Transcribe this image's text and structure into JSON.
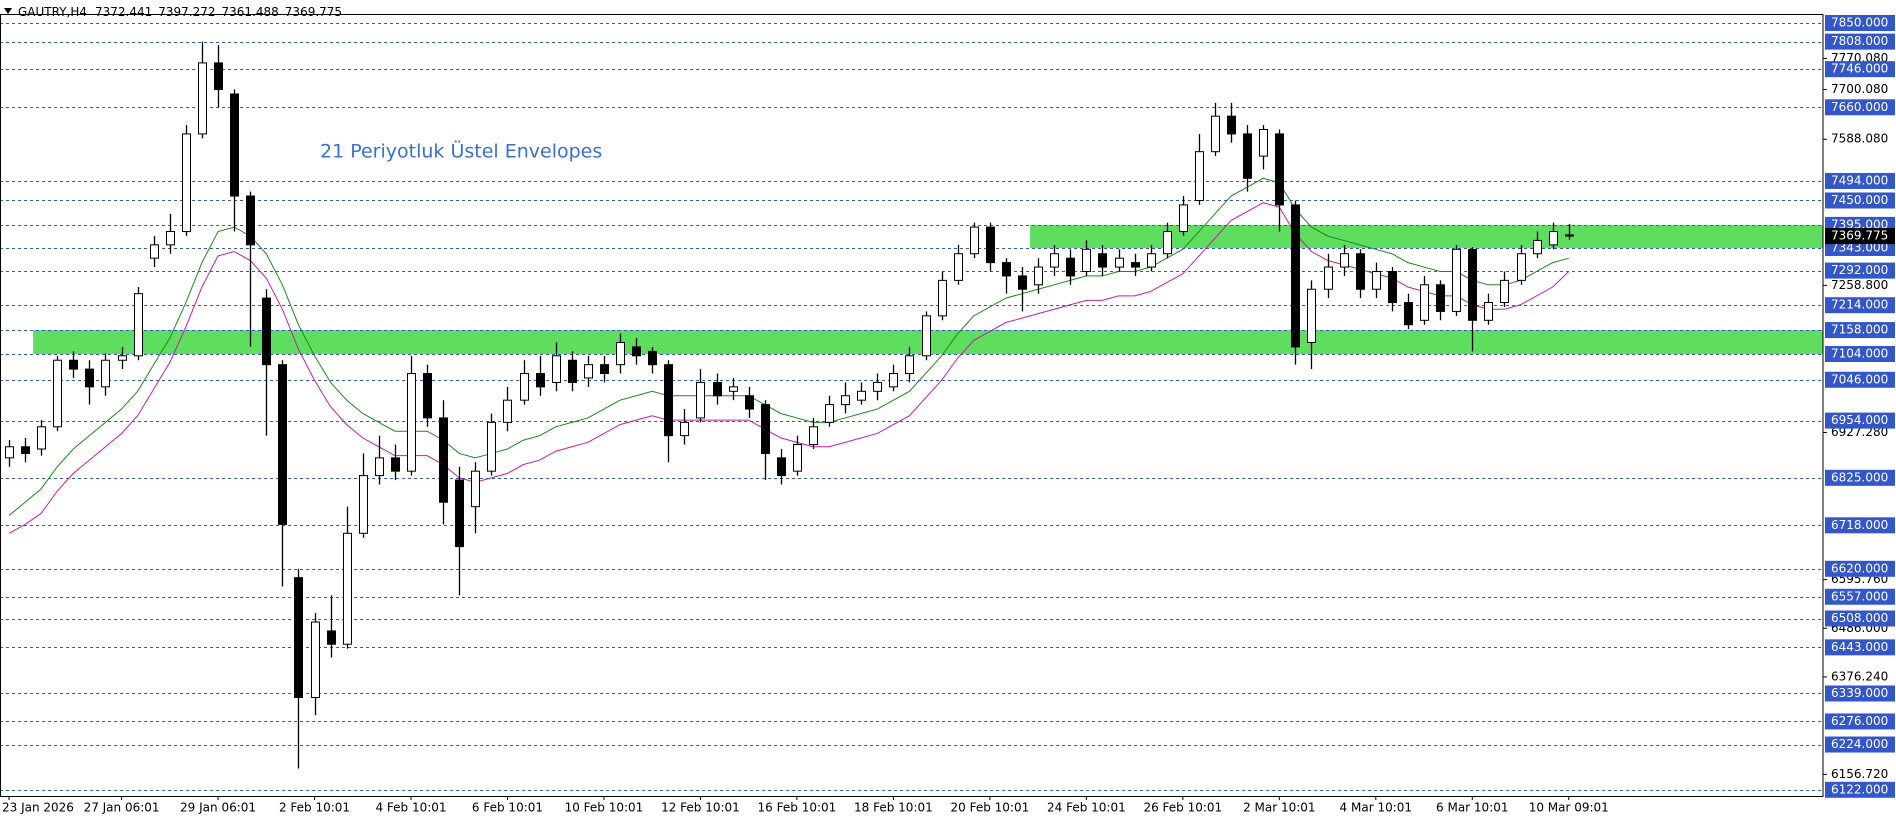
{
  "chart_data": {
    "type": "candlestick",
    "header": "GAUTRY,H4",
    "annotation": "21 Periyotluk Üstel Envelopes",
    "categories": [
      "23 Jan 2026",
      null,
      null,
      null,
      null,
      null,
      null,
      "27 Jan 06:01",
      null,
      null,
      null,
      null,
      null,
      "29 Jan 06:01",
      null,
      null,
      null,
      null,
      null,
      "2 Feb 10:01",
      null,
      null,
      null,
      null,
      null,
      "4 Feb 10:01",
      null,
      null,
      null,
      null,
      null,
      "6 Feb 10:01",
      null,
      null,
      null,
      null,
      null,
      "10 Feb 10:01",
      null,
      null,
      null,
      null,
      null,
      "12 Feb 10:01",
      null,
      null,
      null,
      null,
      null,
      "16 Feb 10:01",
      null,
      null,
      null,
      null,
      null,
      "18 Feb 10:01",
      null,
      null,
      null,
      null,
      null,
      "20 Feb 10:01",
      null,
      null,
      null,
      null,
      null,
      "24 Feb 10:01",
      null,
      null,
      null,
      null,
      null,
      "26 Feb 10:01",
      null,
      null,
      null,
      null,
      null,
      "2 Mar 10:01",
      null,
      null,
      null,
      null,
      null,
      "4 Mar 10:01",
      null,
      null,
      null,
      null,
      null,
      "6 Mar 10:01",
      null,
      null,
      null,
      null,
      null,
      "10 Mar 09:01"
    ],
    "open": [
      6870,
      6895,
      6890,
      6940,
      7090,
      7070,
      7030,
      7090,
      7100,
      7320,
      7350,
      7380,
      7600,
      7760,
      7690,
      7460,
      7230,
      7080,
      6600,
      6330,
      6480,
      6450,
      6700,
      6830,
      6870,
      6840,
      7060,
      6960,
      6820,
      6760,
      6840,
      6950,
      7000,
      7060,
      7040,
      7090,
      7050,
      7080,
      7080,
      7120,
      7110,
      7080,
      6920,
      6960,
      7040,
      7020,
      7010,
      6990,
      6870,
      6840,
      6900,
      6950,
      6990,
      7000,
      7020,
      7030,
      7060,
      7100,
      7190,
      7270,
      7330,
      7390,
      7310,
      7280,
      7260,
      7300,
      7320,
      7290,
      7330,
      7300,
      7310,
      7300,
      7330,
      7380,
      7450,
      7560,
      7640,
      7600,
      7550,
      7600,
      7440,
      7130,
      7250,
      7300,
      7330,
      7250,
      7290,
      7220,
      7180,
      7260,
      7200,
      7340,
      7180,
      7220,
      7270,
      7330,
      7350,
      7372.441
    ],
    "high": [
      6910,
      6915,
      6955,
      7100,
      7110,
      7090,
      7105,
      7120,
      7255,
      7370,
      7420,
      7620,
      7808,
      7800,
      7700,
      7470,
      7250,
      7090,
      6620,
      6520,
      6560,
      6760,
      6880,
      6920,
      6900,
      7100,
      7080,
      7000,
      6850,
      6860,
      6970,
      7030,
      7090,
      7100,
      7130,
      7110,
      7100,
      7100,
      7150,
      7140,
      7120,
      7090,
      6980,
      7070,
      7060,
      7050,
      7030,
      7000,
      6890,
      6920,
      6960,
      7010,
      7040,
      7040,
      7060,
      7080,
      7120,
      7200,
      7290,
      7350,
      7400,
      7400,
      7320,
      7300,
      7320,
      7350,
      7340,
      7360,
      7350,
      7340,
      7330,
      7350,
      7400,
      7460,
      7600,
      7670,
      7670,
      7620,
      7620,
      7610,
      7450,
      7270,
      7330,
      7350,
      7340,
      7310,
      7300,
      7240,
      7280,
      7270,
      7350,
      7345,
      7240,
      7290,
      7350,
      7380,
      7400,
      7397.272
    ],
    "low": [
      6850,
      6860,
      6875,
      6930,
      7050,
      6990,
      7010,
      7070,
      7090,
      7300,
      7330,
      7370,
      7590,
      7660,
      7380,
      7120,
      6920,
      6580,
      6170,
      6290,
      6420,
      6440,
      6690,
      6810,
      6820,
      6830,
      6940,
      6720,
      6560,
      6700,
      6830,
      6930,
      6990,
      7010,
      7020,
      7020,
      7030,
      7040,
      7060,
      7080,
      7060,
      6860,
      6900,
      6950,
      6990,
      7000,
      6960,
      6820,
      6810,
      6830,
      6890,
      6940,
      6970,
      6990,
      7000,
      7020,
      7040,
      7090,
      7180,
      7260,
      7320,
      7290,
      7240,
      7200,
      7240,
      7280,
      7260,
      7280,
      7280,
      7290,
      7280,
      7290,
      7320,
      7370,
      7440,
      7550,
      7580,
      7470,
      7520,
      7380,
      7080,
      7070,
      7230,
      7280,
      7230,
      7230,
      7200,
      7160,
      7170,
      7180,
      7190,
      7110,
      7170,
      7210,
      7260,
      7320,
      7340,
      7361.488
    ],
    "close": [
      6895,
      6880,
      6940,
      7090,
      7070,
      7030,
      7090,
      7100,
      7240,
      7350,
      7380,
      7600,
      7760,
      7700,
      7460,
      7350,
      7080,
      6720,
      6330,
      6500,
      6450,
      6700,
      6830,
      6870,
      6840,
      7060,
      6960,
      6770,
      6670,
      6840,
      6950,
      7000,
      7060,
      7030,
      7100,
      7040,
      7080,
      7060,
      7130,
      7100,
      7080,
      6920,
      6950,
      7040,
      7010,
      7030,
      6980,
      6880,
      6830,
      6900,
      6940,
      6990,
      7010,
      7020,
      7040,
      7060,
      7100,
      7190,
      7270,
      7330,
      7390,
      7310,
      7280,
      7250,
      7300,
      7330,
      7280,
      7340,
      7300,
      7320,
      7300,
      7330,
      7380,
      7440,
      7560,
      7640,
      7600,
      7500,
      7610,
      7440,
      7120,
      7250,
      7300,
      7330,
      7250,
      7290,
      7220,
      7170,
      7260,
      7200,
      7340,
      7180,
      7220,
      7270,
      7330,
      7360,
      7380,
      7369.775
    ],
    "envelopes": [
      {
        "color": "#1a8a1a",
        "values": [
          6740,
          6770,
          6800,
          6850,
          6890,
          6920,
          6950,
          6980,
          7020,
          7080,
          7140,
          7220,
          7310,
          7380,
          7390,
          7370,
          7330,
          7260,
          7170,
          7100,
          7040,
          7000,
          6970,
          6950,
          6930,
          6930,
          6930,
          6910,
          6880,
          6870,
          6880,
          6890,
          6910,
          6920,
          6940,
          6950,
          6960,
          6980,
          7000,
          7010,
          7020,
          7010,
          7010,
          7010,
          7010,
          7010,
          7010,
          6990,
          6970,
          6960,
          6950,
          6950,
          6960,
          6970,
          6980,
          7000,
          7020,
          7060,
          7100,
          7150,
          7190,
          7210,
          7230,
          7240,
          7250,
          7260,
          7270,
          7280,
          7280,
          7290,
          7290,
          7300,
          7320,
          7340,
          7380,
          7420,
          7460,
          7480,
          7500,
          7490,
          7430,
          7390,
          7370,
          7360,
          7350,
          7340,
          7330,
          7310,
          7300,
          7290,
          7290,
          7270,
          7260,
          7260,
          7270,
          7290,
          7310,
          7320
        ]
      },
      {
        "color": "#c020b0",
        "values": [
          6700,
          6720,
          6745,
          6795,
          6835,
          6865,
          6895,
          6925,
          6965,
          7025,
          7085,
          7165,
          7255,
          7325,
          7335,
          7315,
          7275,
          7205,
          7115,
          7045,
          6985,
          6945,
          6915,
          6895,
          6875,
          6875,
          6875,
          6855,
          6825,
          6815,
          6825,
          6835,
          6855,
          6865,
          6885,
          6895,
          6905,
          6925,
          6945,
          6955,
          6965,
          6955,
          6955,
          6955,
          6955,
          6955,
          6955,
          6935,
          6915,
          6905,
          6895,
          6895,
          6905,
          6915,
          6925,
          6945,
          6965,
          7005,
          7045,
          7095,
          7135,
          7155,
          7175,
          7185,
          7195,
          7205,
          7215,
          7225,
          7225,
          7235,
          7235,
          7245,
          7265,
          7285,
          7325,
          7365,
          7405,
          7425,
          7445,
          7435,
          7375,
          7335,
          7315,
          7305,
          7295,
          7285,
          7275,
          7255,
          7245,
          7235,
          7235,
          7215,
          7205,
          7205,
          7215,
          7235,
          7255,
          7290
        ]
      }
    ],
    "zones": [
      {
        "low": 7343,
        "high": 7395,
        "start": 64,
        "color": "#5fdd5f"
      },
      {
        "low": 7104,
        "high": 7158,
        "start": 2,
        "color": "#5fdd5f"
      }
    ],
    "ylim": [
      6108,
      7868
    ],
    "yticks": [
      {
        "value": 7770.08,
        "label": "7770.080"
      },
      {
        "value": 7700.08,
        "label": "7700.080"
      },
      {
        "value": 7588.08,
        "label": "7588.080"
      },
      {
        "value": 7258.8,
        "label": "7258.800"
      },
      {
        "value": 6927.28,
        "label": "6927.280"
      },
      {
        "value": 6595.76,
        "label": "6595.760"
      },
      {
        "value": 6486,
        "label": "6486.000"
      },
      {
        "value": 6376.24,
        "label": "6376.240"
      },
      {
        "value": 6156.72,
        "label": "6156.720"
      }
    ],
    "levels": [
      {
        "value": 7850,
        "label": "7850.000"
      },
      {
        "value": 7808,
        "label": "7808.000"
      },
      {
        "value": 7746,
        "label": "7746.000"
      },
      {
        "value": 7660,
        "label": "7660.000"
      },
      {
        "value": 7494,
        "label": "7494.000"
      },
      {
        "value": 7450,
        "label": "7450.000"
      },
      {
        "value": 7395,
        "label": "7395.000"
      },
      {
        "value": 7343,
        "label": "7343.000"
      },
      {
        "value": 7292,
        "label": "7292.000"
      },
      {
        "value": 7214,
        "label": "7214.000"
      },
      {
        "value": 7158,
        "label": "7158.000"
      },
      {
        "value": 7104,
        "label": "7104.000"
      },
      {
        "value": 7046,
        "label": "7046.000"
      },
      {
        "value": 6954,
        "label": "6954.000"
      },
      {
        "value": 6825,
        "label": "6825.000"
      },
      {
        "value": 6718,
        "label": "6718.000"
      },
      {
        "value": 6620,
        "label": "6620.000"
      },
      {
        "value": 6557,
        "label": "6557.000"
      },
      {
        "value": 6508,
        "label": "6508.000"
      },
      {
        "value": 6443,
        "label": "6443.000"
      },
      {
        "value": 6339,
        "label": "6339.000"
      },
      {
        "value": 6276,
        "label": "6276.000"
      },
      {
        "value": 6224,
        "label": "6224.000"
      },
      {
        "value": 6122,
        "label": "6122.000"
      }
    ],
    "level_color": "#3356c8"
  }
}
